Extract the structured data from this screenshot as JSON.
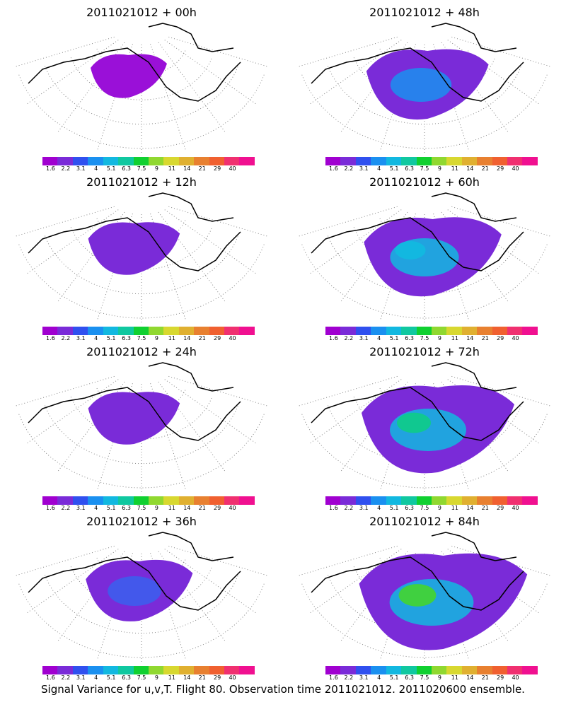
{
  "panels": [
    {
      "title": "2011021012 + 00h",
      "intensity": 0
    },
    {
      "title": "2011021012 + 48h",
      "intensity": 3
    },
    {
      "title": "2011021012 + 12h",
      "intensity": 1
    },
    {
      "title": "2011021012 + 60h",
      "intensity": 4
    },
    {
      "title": "2011021012 + 24h",
      "intensity": 1
    },
    {
      "title": "2011021012 + 72h",
      "intensity": 5
    },
    {
      "title": "2011021012 + 36h",
      "intensity": 2
    },
    {
      "title": "2011021012 + 84h",
      "intensity": 6
    }
  ],
  "colorbar": {
    "colors": [
      "#a000d0",
      "#7a2bd8",
      "#3050ef",
      "#1a90f0",
      "#12b8e0",
      "#10c8a0",
      "#10d030",
      "#90d830",
      "#d8d830",
      "#e0b030",
      "#e88030",
      "#f06030",
      "#f03070",
      "#f01090"
    ],
    "labels": [
      "1.6",
      "2.2",
      "3.1",
      "4",
      "5.1",
      "6.3",
      "7.5",
      "9",
      "11",
      "14",
      "21",
      "29",
      "40"
    ]
  },
  "footer": "Signal Variance for u,v,T. Flight 80. Observation time 2011021012. 2011020600 ensemble."
}
